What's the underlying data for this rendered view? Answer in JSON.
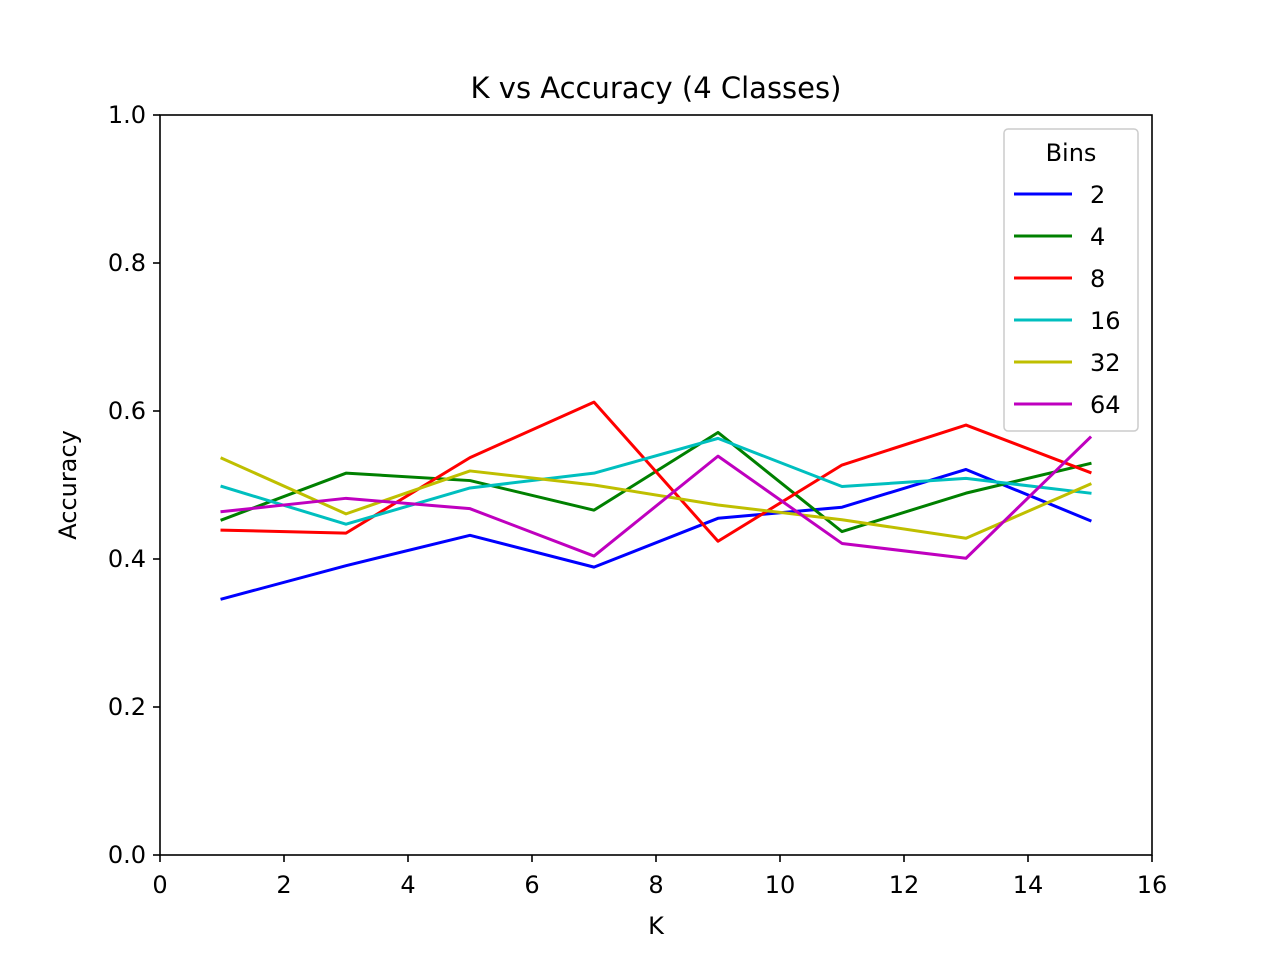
{
  "chart_data": {
    "type": "line",
    "title": "K vs Accuracy (4 Classes)",
    "xlabel": "K",
    "ylabel": "Accuracy",
    "xlim": [
      0,
      16
    ],
    "ylim": [
      0.0,
      1.0
    ],
    "xticks": [
      "0",
      "2",
      "4",
      "6",
      "8",
      "10",
      "12",
      "14",
      "16"
    ],
    "yticks": [
      "0.0",
      "0.2",
      "0.4",
      "0.6",
      "0.8",
      "1.0"
    ],
    "grid": false,
    "legend": {
      "title": "Bins",
      "placement": "top-right"
    },
    "x": [
      1,
      3,
      5,
      7,
      9,
      11,
      13,
      15
    ],
    "series": [
      {
        "name": "2",
        "color": "#0000ff",
        "values": [
          0.346,
          0.391,
          0.432,
          0.389,
          0.455,
          0.47,
          0.521,
          0.452
        ]
      },
      {
        "name": "4",
        "color": "#008000",
        "values": [
          0.453,
          0.516,
          0.506,
          0.466,
          0.571,
          0.437,
          0.489,
          0.529
        ]
      },
      {
        "name": "8",
        "color": "#ff0000",
        "values": [
          0.439,
          0.435,
          0.537,
          0.612,
          0.424,
          0.527,
          0.581,
          0.517
        ]
      },
      {
        "name": "16",
        "color": "#00bfbf",
        "values": [
          0.498,
          0.447,
          0.496,
          0.516,
          0.563,
          0.498,
          0.509,
          0.489
        ]
      },
      {
        "name": "32",
        "color": "#bfbf00",
        "values": [
          0.536,
          0.461,
          0.519,
          0.5,
          0.473,
          0.453,
          0.428,
          0.501
        ]
      },
      {
        "name": "64",
        "color": "#bf00bf",
        "values": [
          0.464,
          0.482,
          0.468,
          0.404,
          0.539,
          0.421,
          0.401,
          0.564
        ]
      }
    ]
  }
}
